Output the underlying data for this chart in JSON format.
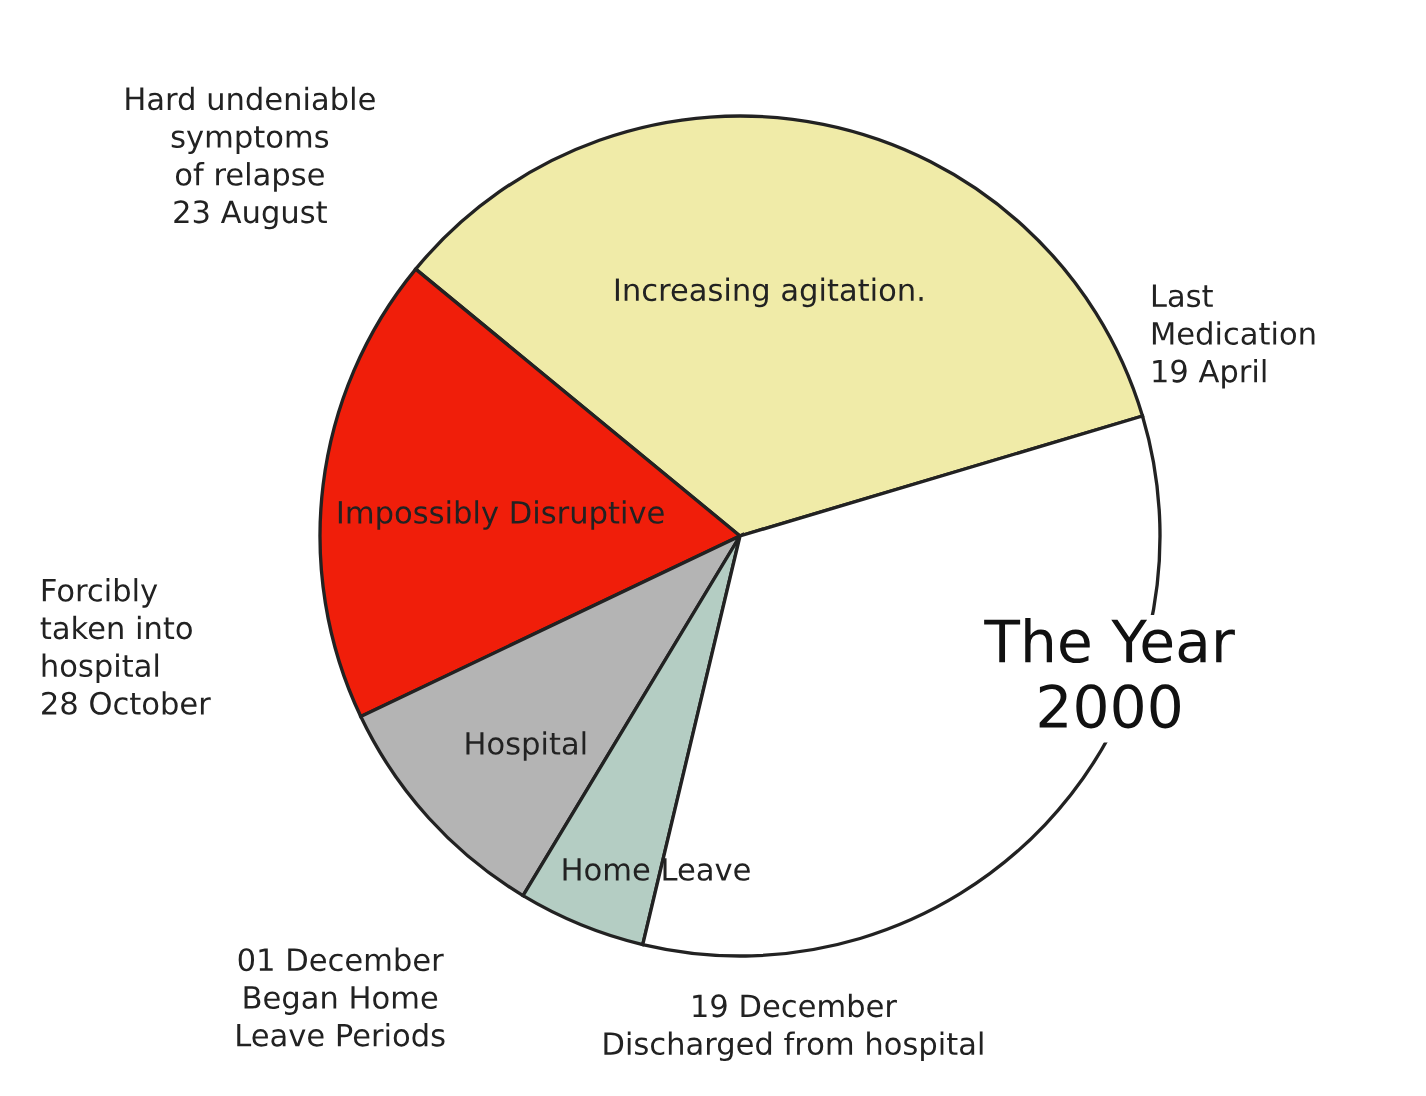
{
  "chart_data": {
    "type": "pie",
    "title": "The Year\n2000",
    "categories": [
      "Increasing agitation.",
      "Impossibly Disruptive",
      "Hospital",
      "Home Leave",
      null
    ],
    "values": [
      34.43,
      18.03,
      9.29,
      4.92,
      33.33
    ],
    "colors": [
      "#f0eba8",
      "#f01e0a",
      "#b4b4b4",
      "#b4cdc3",
      "#ffffff"
    ],
    "annotations": [
      "Last\nMedication\n19 April",
      "Hard undeniable\nsymptoms\nof relapse\n23 August",
      "Forcibly\ntaken into\nhospital\n28 October",
      "01 December\nBegan Home\nLeave Periods",
      "19 December\nDischarged from hospital"
    ]
  }
}
